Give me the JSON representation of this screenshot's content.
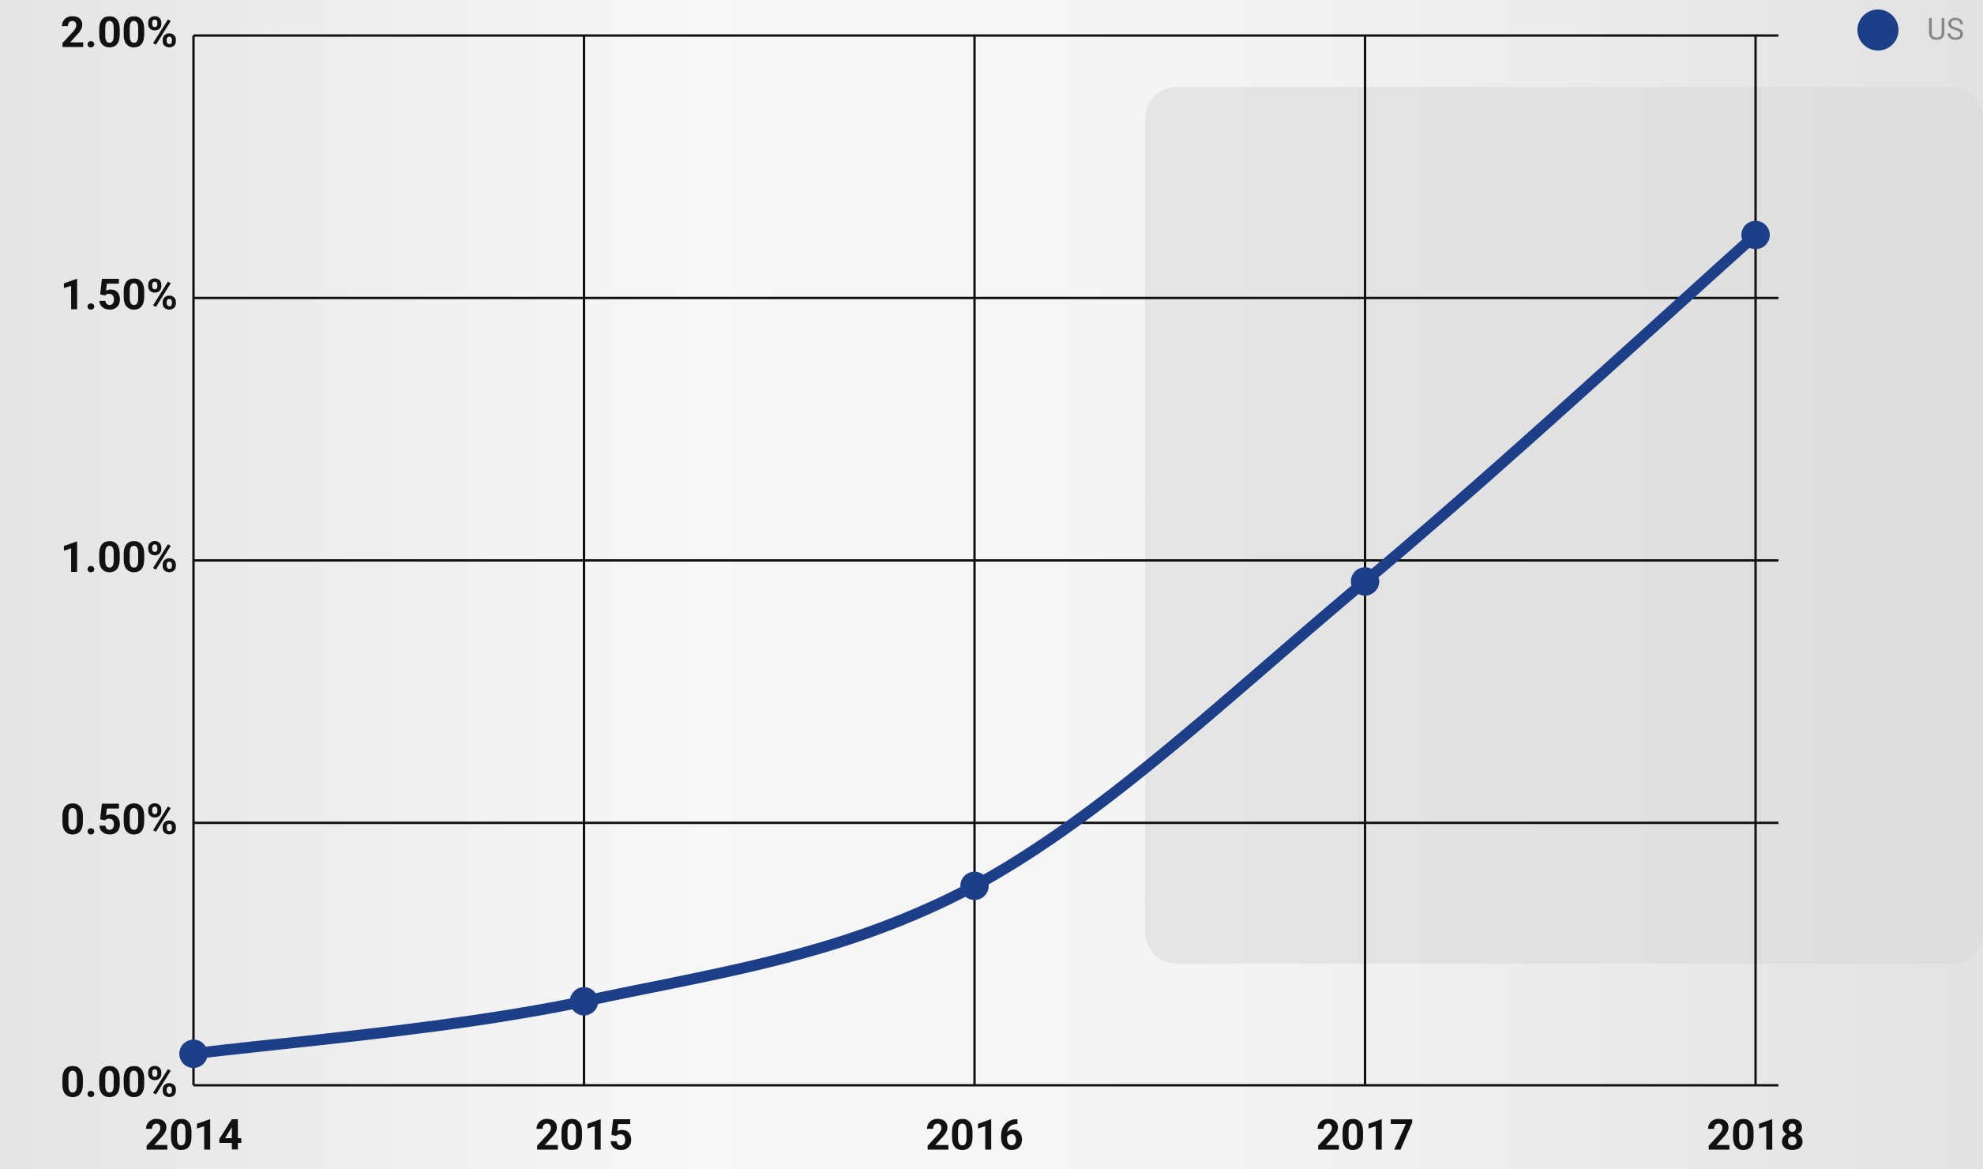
{
  "chart_data": {
    "type": "line",
    "categories": [
      "2014",
      "2015",
      "2016",
      "2017",
      "2018"
    ],
    "series": [
      {
        "name": "US",
        "color": "#1d3f87",
        "values": [
          0.06,
          0.16,
          0.38,
          0.96,
          1.62
        ]
      }
    ],
    "ylim": [
      0,
      2
    ],
    "yticks": [
      {
        "value": 0,
        "label": "0.00%"
      },
      {
        "value": 0.5,
        "label": "0.50%"
      },
      {
        "value": 1,
        "label": "1.00%"
      },
      {
        "value": 1.5,
        "label": "1.50%"
      },
      {
        "value": 2,
        "label": "2.00%"
      }
    ],
    "grid": true,
    "legend": "top-right"
  }
}
